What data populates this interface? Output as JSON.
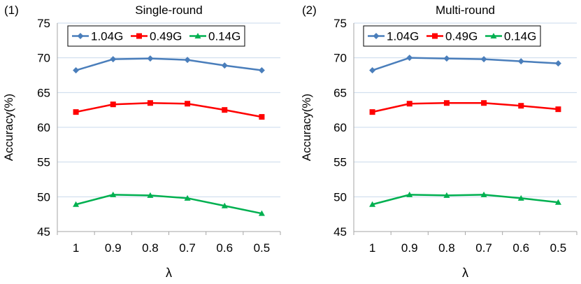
{
  "chart_data": [
    {
      "type": "line",
      "panel_label": "(1)",
      "title": "Single-round",
      "xlabel": "λ",
      "ylabel": "Accuracy(%)",
      "categories": [
        "1",
        "0.9",
        "0.8",
        "0.7",
        "0.6",
        "0.5"
      ],
      "ylim": [
        45,
        75
      ],
      "yticks": [
        45,
        50,
        55,
        60,
        65,
        70,
        75
      ],
      "grid": true,
      "legend": "top",
      "series": [
        {
          "name": "1.04G",
          "color": "#4a7ebb",
          "marker": "diamond",
          "values": [
            68.2,
            69.8,
            69.9,
            69.7,
            68.9,
            68.2
          ]
        },
        {
          "name": "0.49G",
          "color": "#ff0000",
          "marker": "square",
          "values": [
            62.2,
            63.3,
            63.5,
            63.4,
            62.5,
            61.5
          ]
        },
        {
          "name": "0.14G",
          "color": "#00b050",
          "marker": "triangle",
          "values": [
            48.9,
            50.3,
            50.2,
            49.8,
            48.7,
            47.6
          ]
        }
      ]
    },
    {
      "type": "line",
      "panel_label": "(2)",
      "title": "Multi-round",
      "xlabel": "λ",
      "ylabel": "Accuracy(%)",
      "categories": [
        "1",
        "0.9",
        "0.8",
        "0.7",
        "0.6",
        "0.5"
      ],
      "ylim": [
        45,
        75
      ],
      "yticks": [
        45,
        50,
        55,
        60,
        65,
        70,
        75
      ],
      "grid": true,
      "legend": "top",
      "series": [
        {
          "name": "1.04G",
          "color": "#4a7ebb",
          "marker": "diamond",
          "values": [
            68.2,
            70.0,
            69.9,
            69.8,
            69.5,
            69.2
          ]
        },
        {
          "name": "0.49G",
          "color": "#ff0000",
          "marker": "square",
          "values": [
            62.2,
            63.4,
            63.5,
            63.5,
            63.1,
            62.6
          ]
        },
        {
          "name": "0.14G",
          "color": "#00b050",
          "marker": "triangle",
          "values": [
            48.9,
            50.3,
            50.2,
            50.3,
            49.8,
            49.2
          ]
        }
      ]
    }
  ]
}
